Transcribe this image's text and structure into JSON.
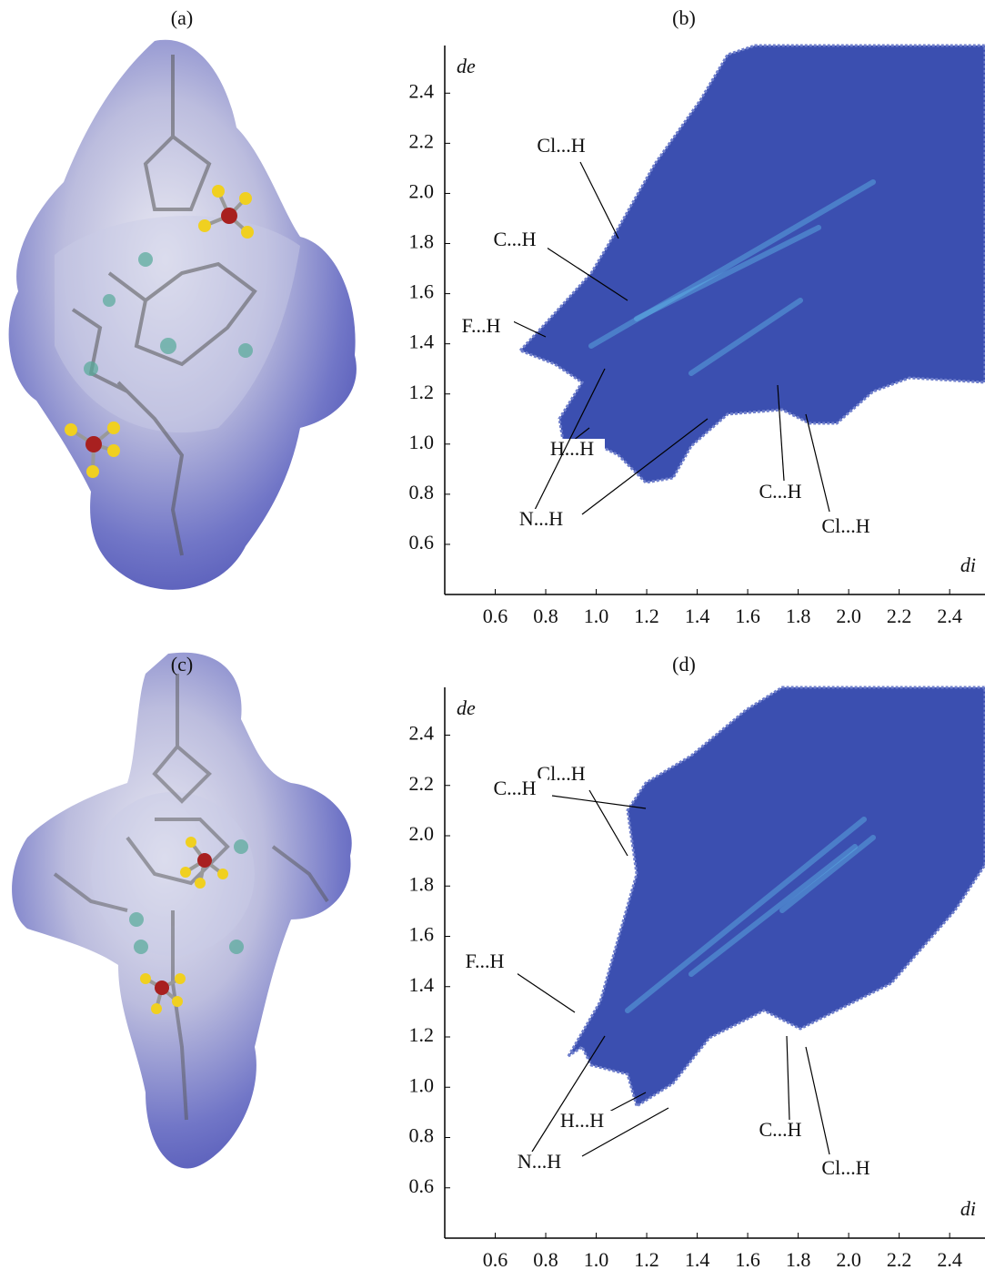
{
  "figure": {
    "panels": [
      {
        "label": "(a)"
      },
      {
        "label": "(b)",
        "y_label": "de",
        "x_label": "di",
        "xlim": [
          0.4,
          2.54
        ],
        "ylim": [
          0.4,
          2.59
        ],
        "xticks": [
          0.6,
          0.8,
          {
            "value": 1,
            "label": "1.0"
          },
          1.2,
          1.4,
          1.6,
          1.8,
          {
            "value": 2,
            "label": "2.0"
          },
          2.2,
          2.4
        ],
        "yticks": [
          0.6,
          0.8,
          {
            "value": 1,
            "label": "1.0"
          },
          1.2,
          1.4,
          1.6,
          1.8,
          {
            "value": 2,
            "label": "2.0"
          },
          2.2,
          2.4
        ],
        "annotations": [
          "Cl...H",
          "C...H",
          "F...H",
          "H...H",
          "N...H",
          "C...H",
          "Cl...H"
        ]
      },
      {
        "label": "(c)"
      },
      {
        "label": "(d)",
        "y_label": "de",
        "x_label": "di",
        "xlim": [
          0.4,
          2.54
        ],
        "ylim": [
          0.4,
          2.59
        ],
        "xticks": [
          0.6,
          0.8,
          {
            "value": 1,
            "label": "1.0"
          },
          1.2,
          1.4,
          1.6,
          1.8,
          {
            "value": 2,
            "label": "2.0"
          },
          2.2,
          2.4
        ],
        "yticks": [
          0.6,
          0.8,
          {
            "value": 1,
            "label": "1.0"
          },
          1.2,
          1.4,
          1.6,
          1.8,
          {
            "value": 2,
            "label": "2.0"
          },
          2.2,
          2.4
        ],
        "annotations": [
          "Cl...H",
          "C...H",
          "F...H",
          "H...H",
          "N...H",
          "C...H",
          "Cl...H"
        ]
      }
    ]
  }
}
